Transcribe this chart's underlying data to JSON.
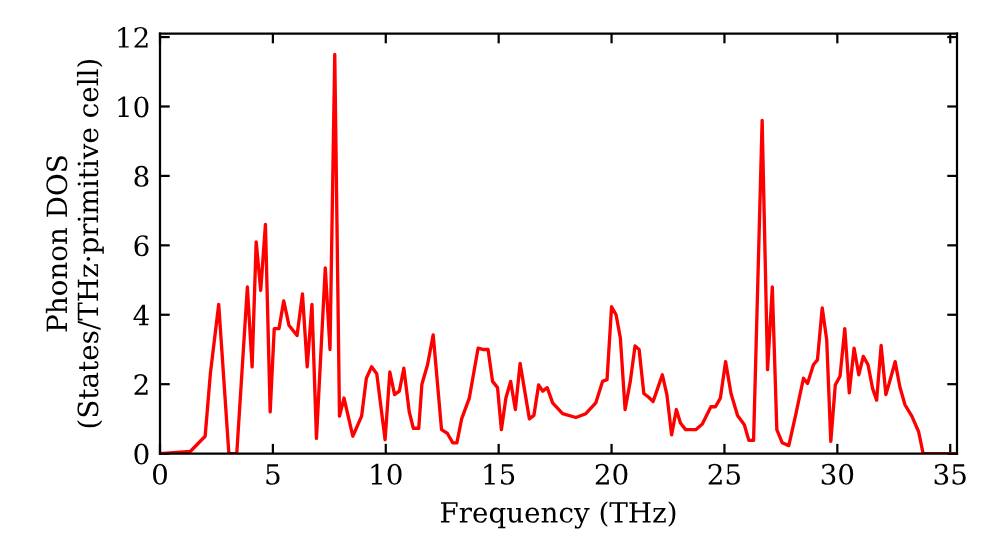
{
  "chart_data": {
    "type": "line",
    "xlabel": "Frequency (THz)",
    "ylabel": "Phonon DOS\n(States/THz·primitive cell)",
    "xlim": [
      0,
      35.3
    ],
    "ylim": [
      0,
      12.1
    ],
    "xticks": [
      0,
      5,
      10,
      15,
      20,
      25,
      30,
      35
    ],
    "yticks": [
      0,
      2,
      4,
      6,
      8,
      10,
      12
    ],
    "grid": false,
    "marker": "none",
    "line_style": "solid",
    "series": [
      {
        "color": "#ff0000",
        "x": [
          0,
          1.34,
          2.0,
          2.23,
          2.6,
          3.05,
          3.4,
          3.87,
          4.08,
          4.26,
          4.46,
          4.67,
          4.88,
          5.06,
          5.27,
          5.48,
          5.71,
          6.07,
          6.31,
          6.52,
          6.73,
          6.93,
          7.32,
          7.53,
          7.74,
          7.95,
          8.15,
          8.54,
          8.93,
          9.14,
          9.37,
          9.6,
          9.97,
          10.18,
          10.39,
          10.6,
          10.8,
          11.04,
          11.22,
          11.46,
          11.6,
          11.85,
          12.1,
          12.47,
          12.73,
          12.97,
          13.15,
          13.36,
          13.7,
          14.09,
          14.29,
          14.53,
          14.73,
          14.95,
          15.12,
          15.32,
          15.53,
          15.74,
          15.95,
          16.36,
          16.56,
          16.77,
          16.95,
          17.15,
          17.39,
          17.83,
          18.42,
          18.86,
          19.3,
          19.6,
          19.8,
          20.0,
          20.2,
          20.39,
          20.6,
          20.83,
          21.04,
          21.22,
          21.43,
          21.63,
          21.84,
          22.0,
          22.25,
          22.45,
          22.66,
          22.87,
          23.05,
          23.28,
          23.73,
          24.02,
          24.4,
          24.6,
          24.82,
          25.05,
          25.29,
          25.58,
          25.88,
          26.08,
          26.29,
          26.67,
          26.91,
          27.12,
          27.32,
          27.56,
          27.85,
          28.15,
          28.5,
          28.68,
          28.94,
          29.12,
          29.33,
          29.53,
          29.71,
          29.91,
          30.12,
          30.33,
          30.53,
          30.74,
          30.95,
          31.15,
          31.36,
          31.56,
          31.74,
          31.94,
          32.15,
          32.36,
          32.56,
          32.77,
          33.0,
          33.3,
          33.6,
          33.8,
          35.3
        ],
        "values": [
          0,
          0.06,
          0.5,
          2.3,
          4.3,
          0,
          0,
          4.8,
          2.5,
          6.1,
          4.7,
          6.6,
          1.2,
          3.6,
          3.6,
          4.4,
          3.7,
          3.4,
          4.6,
          2.5,
          4.3,
          0.44,
          5.35,
          3.0,
          11.5,
          1.08,
          1.6,
          0.5,
          1.08,
          2.17,
          2.5,
          2.3,
          0.4,
          2.35,
          1.7,
          1.8,
          2.46,
          1.2,
          0.73,
          0.73,
          2.0,
          2.56,
          3.42,
          0.69,
          0.58,
          0.31,
          0.31,
          1.0,
          1.6,
          3.04,
          3.0,
          3.0,
          2.08,
          1.9,
          0.69,
          1.6,
          2.08,
          1.27,
          2.6,
          1.0,
          1.1,
          1.98,
          1.8,
          1.9,
          1.46,
          1.15,
          1.04,
          1.15,
          1.46,
          2.08,
          2.13,
          4.23,
          4.0,
          3.33,
          1.27,
          2.08,
          3.1,
          3.0,
          1.73,
          1.63,
          1.5,
          1.8,
          2.27,
          1.7,
          0.54,
          1.27,
          0.88,
          0.69,
          0.69,
          0.85,
          1.35,
          1.35,
          1.6,
          2.65,
          1.73,
          1.1,
          0.83,
          0.38,
          0.38,
          9.6,
          2.42,
          4.8,
          0.69,
          0.31,
          0.23,
          1.1,
          2.17,
          2.02,
          2.56,
          2.7,
          4.2,
          3.27,
          0.35,
          1.98,
          2.23,
          3.6,
          1.75,
          3.04,
          2.27,
          2.8,
          2.56,
          1.88,
          1.54,
          3.12,
          1.7,
          2.17,
          2.65,
          1.92,
          1.4,
          1.08,
          0.63,
          0,
          0
        ]
      }
    ]
  }
}
